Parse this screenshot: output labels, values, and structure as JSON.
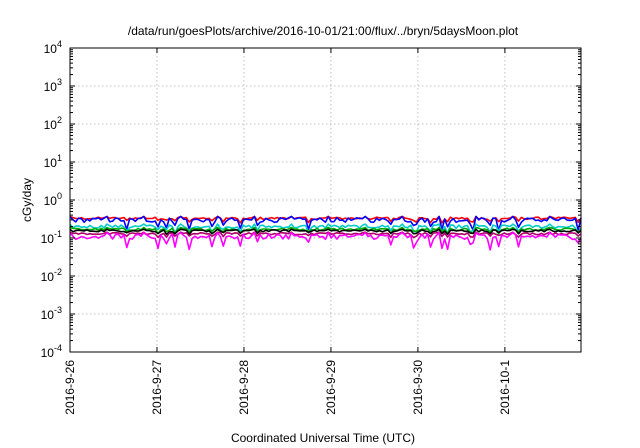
{
  "chart_data": {
    "type": "line",
    "title": "/data/run/goesPlots/archive/2016-10-01/21:00/flux/../bryn/5daysMoon.plot",
    "xlabel": "Coordinated Universal Time (UTC)",
    "ylabel": "cGy/day",
    "yscale": "log",
    "ylim": [
      0.0001,
      10000
    ],
    "xlim": [
      "2016-09-26 00:00",
      "2016-10-01 21:00"
    ],
    "grid": true,
    "x_ticks": [
      "2016-9-26",
      "2016-9-27",
      "2016-9-28",
      "2016-9-29",
      "2016-9-30",
      "2016-10-1"
    ],
    "y_ticks": [
      {
        "value": 0.0001,
        "base": "10",
        "exp": "-4"
      },
      {
        "value": 0.001,
        "base": "10",
        "exp": "-3"
      },
      {
        "value": 0.01,
        "base": "10",
        "exp": "-2"
      },
      {
        "value": 0.1,
        "base": "10",
        "exp": "-1"
      },
      {
        "value": 1,
        "base": "10",
        "exp": "0"
      },
      {
        "value": 10,
        "base": "10",
        "exp": "1"
      },
      {
        "value": 100,
        "base": "10",
        "exp": "2"
      },
      {
        "value": 1000,
        "base": "10",
        "exp": "3"
      },
      {
        "value": 10000,
        "base": "10",
        "exp": "4"
      }
    ],
    "series": [
      {
        "color": "#ff0000",
        "level": 0.33,
        "spread": 0.07
      },
      {
        "color": "#0000ff",
        "level": 0.3,
        "spread": 0.14
      },
      {
        "color": "#00cccc",
        "level": 0.2,
        "spread": 0.1
      },
      {
        "color": "#00aa00",
        "level": 0.17,
        "spread": 0.07
      },
      {
        "color": "#000000",
        "level": 0.155,
        "spread": 0.06
      },
      {
        "color": "#b0006a",
        "level": 0.13,
        "spread": 0.06
      },
      {
        "color": "#ff00ff",
        "level": 0.11,
        "spread": 0.16
      }
    ]
  }
}
